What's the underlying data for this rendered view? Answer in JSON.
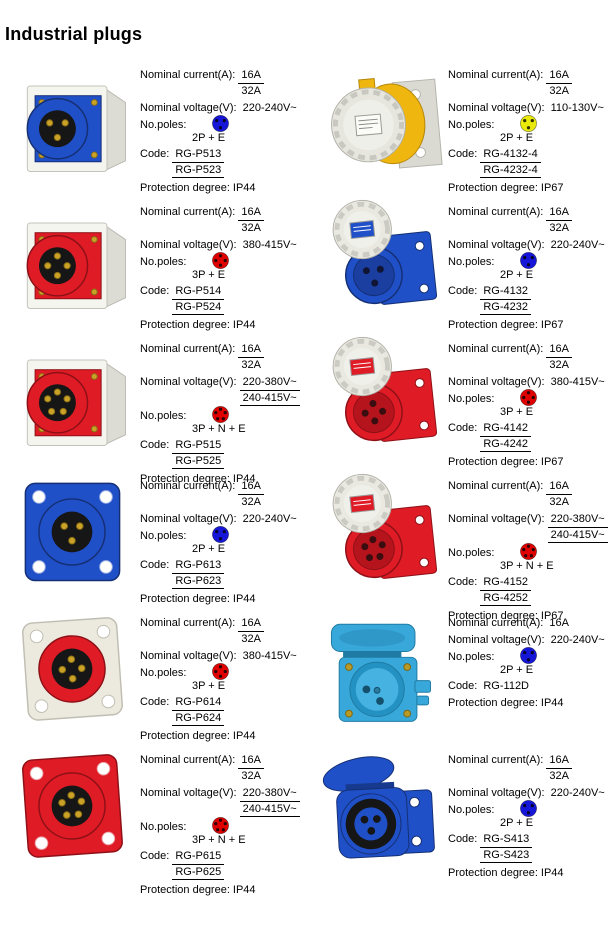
{
  "page": {
    "title": "Industrial plugs"
  },
  "labels": {
    "current": "Nominal current(A):",
    "voltage": "Nominal voltage(V):",
    "poles": "No.poles:",
    "code": "Code:",
    "protection": "Protection degree:"
  },
  "colors": {
    "pole_dot_blue": "#1616d8",
    "pole_dot_red": "#e00000",
    "pole_dot_yellow": "#e9e90a",
    "plug_blue": "#2050c8",
    "plug_red": "#df1b26",
    "socket_yellow": "#eeb60e",
    "socket_cyan": "#38a8da"
  },
  "products": [
    {
      "image": "blue-angled-surface-plug",
      "current": [
        "16A",
        "32A"
      ],
      "voltage": [
        "220-240V~"
      ],
      "poles": "2P + E",
      "dot_color": "#1616d8",
      "codes": [
        "RG-P513",
        "RG-P523"
      ],
      "protection": "IP44"
    },
    {
      "image": "yellow-panel-socket-capped",
      "current": [
        "16A",
        "32A"
      ],
      "voltage": [
        "110-130V~"
      ],
      "poles": "2P + E",
      "dot_color": "#e9e90a",
      "codes": [
        "RG-4132-4",
        "RG-4232-4"
      ],
      "protection": "IP67"
    },
    {
      "image": "red-angled-surface-plug",
      "current": [
        "16A",
        "32A"
      ],
      "voltage": [
        "380-415V~"
      ],
      "poles": "3P + E",
      "dot_color": "#e00000",
      "codes": [
        "RG-P514",
        "RG-P524"
      ],
      "protection": "IP44"
    },
    {
      "image": "blue-panel-socket-open-cap",
      "current": [
        "16A",
        "32A"
      ],
      "voltage": [
        "220-240V~"
      ],
      "poles": "2P + E",
      "dot_color": "#1616d8",
      "codes": [
        "RG-4132",
        "RG-4232"
      ],
      "protection": "IP67"
    },
    {
      "image": "red-angled-surface-plug-5pin",
      "current": [
        "16A",
        "32A"
      ],
      "voltage": [
        "220-380V~",
        "240-415V~"
      ],
      "poles": "3P + N + E",
      "dot_color": "#e00000",
      "codes": [
        "RG-P515",
        "RG-P525"
      ],
      "protection": "IP44"
    },
    {
      "image": "red-panel-socket-open-cap",
      "current": [
        "16A",
        "32A"
      ],
      "voltage": [
        "380-415V~"
      ],
      "poles": "3P + E",
      "dot_color": "#e00000",
      "codes": [
        "RG-4142",
        "RG-4242"
      ],
      "protection": "IP67"
    },
    {
      "image": "blue-flange-plug-front",
      "current": [
        "16A",
        "32A"
      ],
      "voltage": [
        "220-240V~"
      ],
      "poles": "2P + E",
      "dot_color": "#1616d8",
      "codes": [
        "RG-P613",
        "RG-P623"
      ],
      "protection": "IP44"
    },
    {
      "image": "red-panel-socket-open-cap-5hole",
      "current": [
        "16A",
        "32A"
      ],
      "voltage": [
        "220-380V~",
        "240-415V~"
      ],
      "poles": "3P + N + E",
      "dot_color": "#e00000",
      "codes": [
        "RG-4152",
        "RG-4252"
      ],
      "protection": "IP67"
    },
    {
      "image": "red-flange-plug-angled",
      "current": [
        "16A",
        "32A"
      ],
      "voltage": [
        "380-415V~"
      ],
      "poles": "3P + E",
      "dot_color": "#e00000",
      "codes": [
        "RG-P614",
        "RG-P624"
      ],
      "protection": "IP44"
    },
    {
      "image": "cyan-lid-socket",
      "current": [
        "16A"
      ],
      "voltage": [
        "220-240V~"
      ],
      "poles": "2P + E",
      "dot_color": "#1616d8",
      "codes": [
        "RG-112D"
      ],
      "protection": "IP44"
    },
    {
      "image": "red-flange-plug-5pin",
      "current": [
        "16A",
        "32A"
      ],
      "voltage": [
        "220-380V~",
        "240-415V~"
      ],
      "poles": "3P + N + E",
      "dot_color": "#e00000",
      "codes": [
        "RG-P615",
        "RG-P625"
      ],
      "protection": "IP44"
    },
    {
      "image": "blue-surface-socket-lid",
      "current": [
        "16A",
        "32A"
      ],
      "voltage": [
        "220-240V~"
      ],
      "poles": "2P + E",
      "dot_color": "#1616d8",
      "codes": [
        "RG-S413",
        "RG-S423"
      ],
      "protection": "IP44"
    }
  ]
}
